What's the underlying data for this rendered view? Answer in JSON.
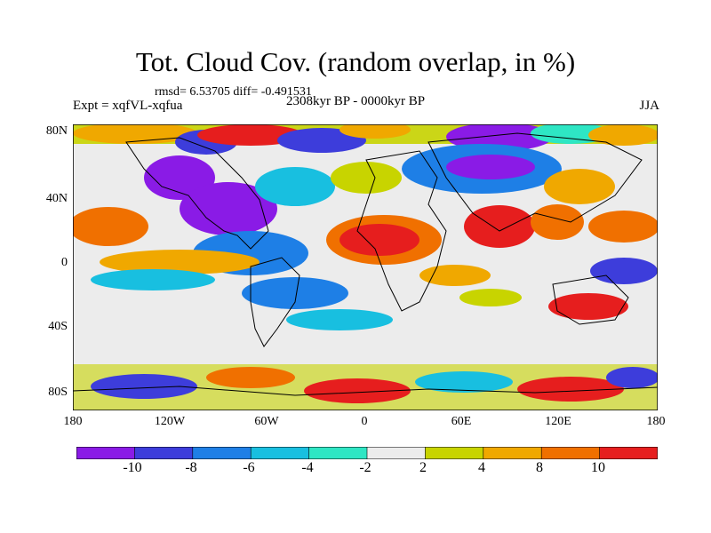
{
  "header": {
    "title": "Tot. Cloud Cov. (random overlap, in %)",
    "stats": "rmsd= 6.53705 diff= -0.491531",
    "experiment": "Expt = xqfVL-xqfua",
    "period": "2308kyr BP - 0000kyr BP",
    "season": "JJA"
  },
  "map": {
    "lat_ticks": [
      "80N",
      "40N",
      "0",
      "40S",
      "80S"
    ],
    "lon_ticks": [
      "180",
      "120W",
      "60W",
      "0",
      "60E",
      "120E",
      "180"
    ]
  },
  "colorbar": {
    "labels": [
      "-10",
      "-8",
      "-6",
      "-4",
      "-2",
      "2",
      "4",
      "8",
      "10"
    ],
    "colors": [
      "#8a1be6",
      "#3d3ddb",
      "#1e7fe6",
      "#18bfe0",
      "#2ee6c4",
      "#ececec",
      "#c8d400",
      "#f0a800",
      "#f07000",
      "#e61e1e"
    ]
  }
}
